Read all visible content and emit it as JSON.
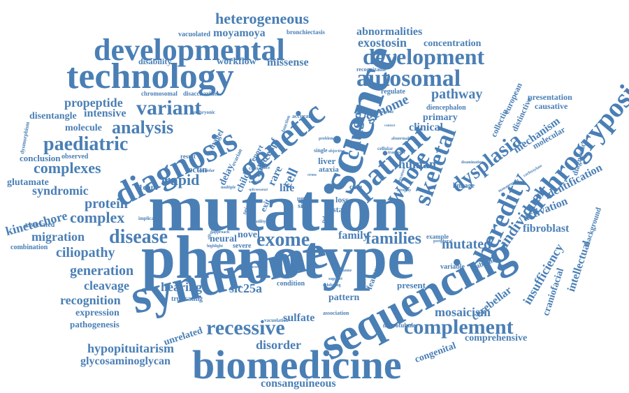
{
  "colors": {
    "word": "#4a7fb5",
    "background": "#ffffff"
  },
  "words": {
    "mutation": "mutation",
    "phenotype": "phenotype",
    "syndrome": "syndrome",
    "sequencing": "sequencing",
    "biomedicine": "biomedicine",
    "science": "science",
    "technology": "technology",
    "genetic": "genetic",
    "diagnosis": "diagnosis",
    "developmental": "developmental",
    "development": "development",
    "autosomal": "autosomal",
    "patient": "patient",
    "arthrogryposis": "arthrogryposis",
    "heredity": "heredity",
    "skeletal": "skeletal",
    "whole": "whole",
    "cause": "cause",
    "dysplasia": "dysplasia",
    "exome": "exome",
    "recessive": "recessive",
    "complement": "complement",
    "variant": "variant",
    "analysis": "analysis",
    "paediatric": "paediatric",
    "complexes": "complexes",
    "complex": "complex",
    "disease": "disease",
    "protein": "protein",
    "rapid": "rapid",
    "syndromic": "syndromic",
    "kinetochore": "kinetochore",
    "migration": "migration",
    "ciliopathy": "ciliopathy",
    "generation": "generation",
    "cleavage": "cleavage",
    "recognition": "recognition",
    "hearing": "hearing",
    "expression": "expression",
    "pathogenesis": "pathogenesis",
    "hypopituitarism": "hypopituitarism",
    "glycosaminoglycan": "glycosaminoglycan",
    "consanguineous": "consanguineous",
    "disorder": "disorder",
    "sulfate": "sulfate",
    "mosaicism": "mosaicism",
    "mutated": "mutated",
    "families": "families",
    "family": "family",
    "heterogeneous": "heterogeneous",
    "moyamoya": "moyamoya",
    "workflow": "workflow",
    "missense": "missense",
    "disability": "disability",
    "abnormalities": "abnormalities",
    "exostosin": "exostosin",
    "concentration": "concentration",
    "genome": "genome",
    "pathway": "pathway",
    "clinical": "clinical",
    "primary": "primary",
    "human": "human",
    "individual": "individual",
    "activation": "activation",
    "identification": "identification",
    "fibroblast": "fibroblast",
    "mechanism": "mechanism",
    "insufficiency": "insufficiency",
    "craniofacial": "craniofacial",
    "intellectual": "intellectual",
    "cerebellar": "cerebellar",
    "comprehensive": "comprehensive",
    "congenital": "congenital",
    "unrelated": "unrelated",
    "propeptide": "propeptide",
    "intensive": "intensive",
    "disentangle": "disentangle",
    "molecule": "molecule",
    "conclusion": "conclusion",
    "glutamate": "glutamate",
    "associated": "associated",
    "combination": "combination",
    "neural": "neural",
    "novel": "novel",
    "severe": "severe",
    "slc25a": "slc25a",
    "truncating": "truncating",
    "lectin": "lectin",
    "l1cam": "l1cam",
    "life": "life",
    "liver": "liver",
    "cell": "cell",
    "rare": "rare",
    "colec": "colec",
    "cenpf": "cenpf",
    "magel": "magel",
    "delay": "delay",
    "child": "child",
    "report": "report",
    "exit": "exit",
    "ataxia": "ataxia",
    "care": "care",
    "linkage": "linkage",
    "loss": "loss",
    "unit": "unit",
    "site": "site",
    "stag": "stag",
    "pattern": "pattern",
    "present": "present",
    "variable": "variable",
    "example": "example",
    "absence": "absence",
    "feature": "feature",
    "condition": "condition",
    "presentation": "presentation",
    "causative": "causative",
    "molecular": "molecular",
    "diagnostic": "diagnostic",
    "background": "background",
    "collectin": "collectin",
    "european": "european",
    "distinctive": "distinctive",
    "diencephalon": "diencephalon",
    "regulate": "regulate",
    "recognizable": "recognizable",
    "vacuolated": "vacuolated",
    "bronchiectasis": "bronchiectasis",
    "chromosomal": "chromosomal",
    "disaccharide": "disaccharide",
    "embryonic": "embryonic",
    "observed": "observed",
    "dysmorphism": "dysmorphism",
    "seizure": "seizure",
    "microtubule": "microtubule",
    "association": "association",
    "vacuolation": "vacuolation",
    "result": "result",
    "accurate": "accurate",
    "function": "function",
    "single": "single",
    "causal": "causal",
    "cellular": "cellular",
    "important": "important",
    "implicated": "implicated",
    "deamination": "deamination",
    "peripheral": "peripheral",
    "management": "management",
    "carboxylate": "carboxylate",
    "discovery": "discovery",
    "approach": "approach",
    "offspring": "offspring",
    "highlight": "highlight",
    "multiple": "multiple",
    "pdzd": "pdzd",
    "ovarian": "ovarian",
    "centriolar": "centriolar",
    "literature": "literature",
    "atrophy": "atrophy",
    "support": "support",
    "exhibiting": "exhibiting",
    "phenome": "phenome",
    "problem": "problem",
    "objective": "objective",
    "transport": "transport",
    "abnormal": "abnormal",
    "contact": "contact",
    "spliceosomal": "spliceosomal",
    "splice": "splice",
    "sample": "sample",
    "utility": "utility",
    "cross": "cross"
  }
}
